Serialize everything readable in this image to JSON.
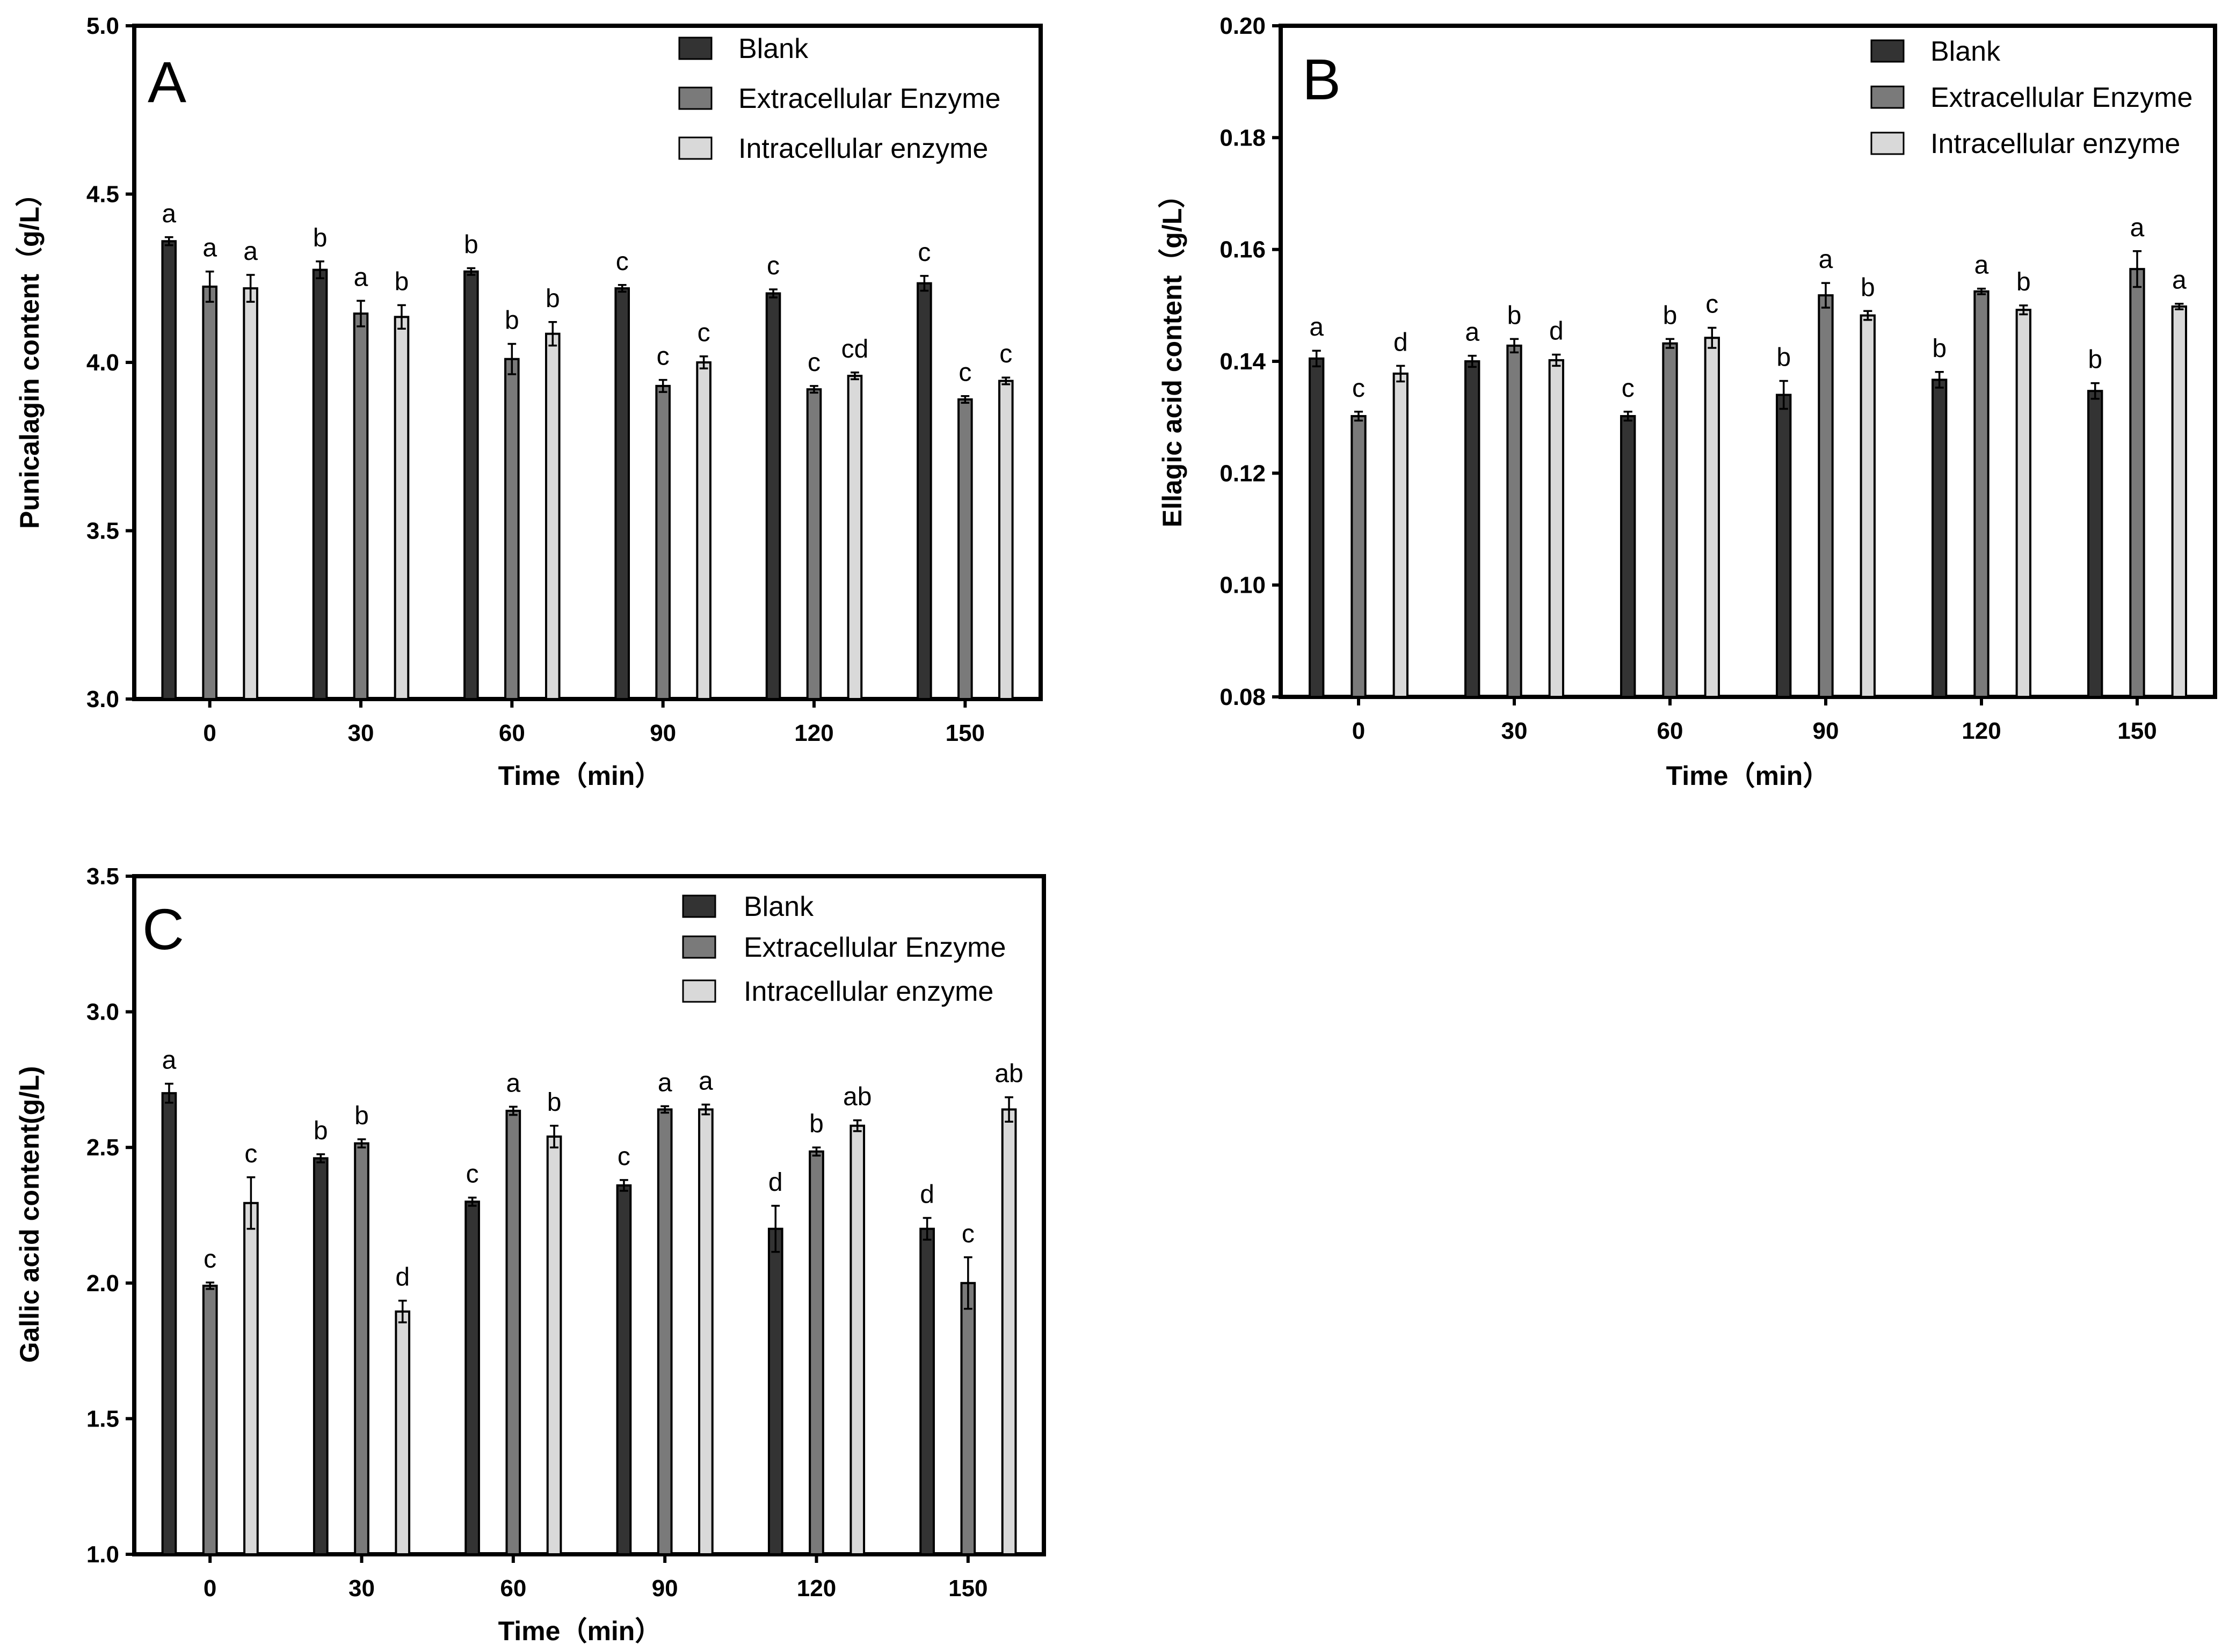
{
  "colors": {
    "Blank": "#333333",
    "Extracellular Enzyme": "#7a7a7a",
    "Intracellular enzyme": "#d9d9d9",
    "stroke": "#000000"
  },
  "chart_data": [
    {
      "type": "bar",
      "panel": "A",
      "categories": [
        "0",
        "30",
        "60",
        "90",
        "120",
        "150"
      ],
      "xlabel": "Time（min）",
      "ylabel": "Punicalagin content（g/L）",
      "ylim": [
        3.0,
        5.0
      ],
      "yticks": [
        "3.0",
        "3.5",
        "4.0",
        "4.5",
        "5.0"
      ],
      "legend_position": "top-right",
      "series": [
        {
          "name": "Blank",
          "values": [
            4.36,
            4.275,
            4.27,
            4.22,
            4.205,
            4.235
          ],
          "errors": [
            0.012,
            0.025,
            0.01,
            0.01,
            0.012,
            0.022
          ],
          "labels": [
            "a",
            "b",
            "b",
            "c",
            "c",
            "c"
          ]
        },
        {
          "name": "Extracellular Enzyme",
          "values": [
            4.225,
            4.145,
            4.01,
            3.93,
            3.92,
            3.89
          ],
          "errors": [
            0.045,
            0.038,
            0.045,
            0.018,
            0.01,
            0.01
          ],
          "labels": [
            "a",
            "a",
            "b",
            "c",
            "c",
            "c"
          ]
        },
        {
          "name": "Intracellular enzyme",
          "values": [
            4.22,
            4.135,
            4.085,
            4.0,
            3.96,
            3.945
          ],
          "errors": [
            0.04,
            0.035,
            0.035,
            0.018,
            0.01,
            0.01
          ],
          "labels": [
            "a",
            "b",
            "b",
            "c",
            "cd",
            "c"
          ]
        }
      ]
    },
    {
      "type": "bar",
      "panel": "B",
      "categories": [
        "0",
        "30",
        "60",
        "90",
        "120",
        "150"
      ],
      "xlabel": "Time（min）",
      "ylabel": "Ellagic acid content（g/L）",
      "ylim": [
        0.08,
        0.2
      ],
      "yticks": [
        "0.08",
        "0.10",
        "0.12",
        "0.14",
        "0.16",
        "0.18",
        "0.20"
      ],
      "legend_position": "top-right",
      "series": [
        {
          "name": "Blank",
          "values": [
            0.1405,
            0.14,
            0.1302,
            0.134,
            0.1367,
            0.1347
          ],
          "errors": [
            0.0014,
            0.001,
            0.0008,
            0.0025,
            0.0014,
            0.0014
          ],
          "labels": [
            "a",
            "a",
            "c",
            "b",
            "b",
            "b"
          ]
        },
        {
          "name": "Extracellular Enzyme",
          "values": [
            0.1302,
            0.1428,
            0.1432,
            0.1518,
            0.1525,
            0.1565
          ],
          "errors": [
            0.0008,
            0.0012,
            0.0008,
            0.0022,
            0.0005,
            0.0032
          ],
          "labels": [
            "c",
            "b",
            "b",
            "a",
            "a",
            "a"
          ]
        },
        {
          "name": "Intracellular enzyme",
          "values": [
            0.1378,
            0.1402,
            0.1442,
            0.1482,
            0.1492,
            0.1498
          ],
          "errors": [
            0.0014,
            0.001,
            0.0018,
            0.0008,
            0.0008,
            0.0005
          ],
          "labels": [
            "d",
            "d",
            "c",
            "b",
            "b",
            "a"
          ]
        }
      ]
    },
    {
      "type": "bar",
      "panel": "C",
      "categories": [
        "0",
        "30",
        "60",
        "90",
        "120",
        "150"
      ],
      "xlabel": "Time（min）",
      "ylabel": "Gallic acid content(g/L)",
      "ylim": [
        1.0,
        3.5
      ],
      "yticks": [
        "1.0",
        "1.5",
        "2.0",
        "2.5",
        "3.0",
        "3.5"
      ],
      "legend_position": "top-right",
      "series": [
        {
          "name": "Blank",
          "values": [
            2.7,
            2.46,
            2.3,
            2.36,
            2.2,
            2.2
          ],
          "errors": [
            0.035,
            0.015,
            0.015,
            0.02,
            0.085,
            0.04
          ],
          "labels": [
            "a",
            "b",
            "c",
            "c",
            "d",
            "d"
          ]
        },
        {
          "name": "Extracellular Enzyme",
          "values": [
            1.99,
            2.515,
            2.635,
            2.64,
            2.485,
            2.0
          ],
          "errors": [
            0.012,
            0.015,
            0.015,
            0.012,
            0.015,
            0.095
          ],
          "labels": [
            "c",
            "b",
            "a",
            "a",
            "b",
            "c"
          ]
        },
        {
          "name": "Intracellular enzyme",
          "values": [
            2.295,
            1.895,
            2.54,
            2.64,
            2.58,
            2.64
          ],
          "errors": [
            0.095,
            0.04,
            0.04,
            0.018,
            0.02,
            0.045
          ],
          "labels": [
            "c",
            "d",
            "b",
            "a",
            "ab",
            "ab"
          ]
        }
      ]
    }
  ]
}
